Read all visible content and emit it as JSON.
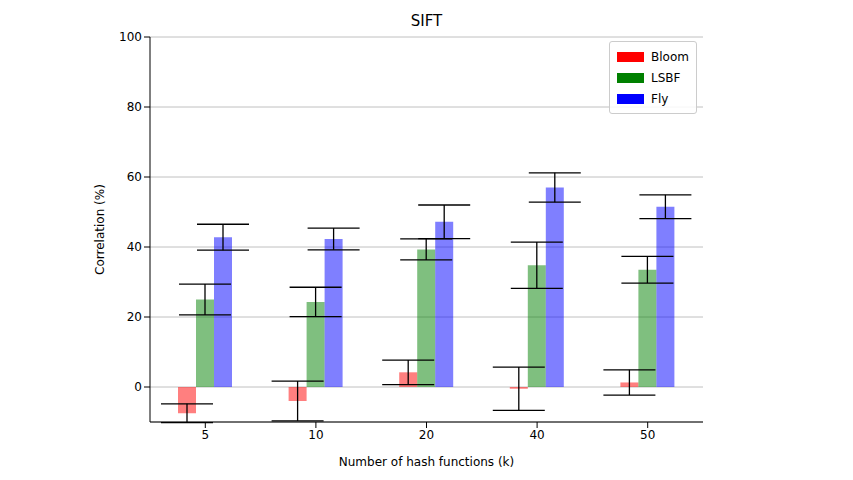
{
  "chart_data": {
    "type": "bar",
    "title": "SIFT",
    "x_label": "Number of hash functions (k)",
    "y_label": "Correlation (%)",
    "categories": [
      "5",
      "10",
      "20",
      "40",
      "50"
    ],
    "series": [
      {
        "name": "Bloom",
        "color": "#ff0000",
        "values": [
          -7.5,
          -4,
          4.2,
          -0.5,
          1.3
        ],
        "errors": [
          2.7,
          5.7,
          3.5,
          6.2,
          3.6
        ]
      },
      {
        "name": "LSBF",
        "color": "#008000",
        "values": [
          25,
          24.3,
          39.3,
          34.8,
          33.5
        ],
        "errors": [
          4.4,
          4.2,
          3,
          6.6,
          3.8
        ]
      },
      {
        "name": "Fly",
        "color": "#0000ff",
        "values": [
          42.8,
          42.3,
          47.2,
          57,
          51.5
        ],
        "errors": [
          3.7,
          3.1,
          4.8,
          4.2,
          3.4
        ]
      }
    ],
    "ylim": [
      -10,
      100
    ],
    "yticks": [
      0,
      20,
      40,
      60,
      80,
      100
    ],
    "grid": "y",
    "legend": "upper right"
  }
}
